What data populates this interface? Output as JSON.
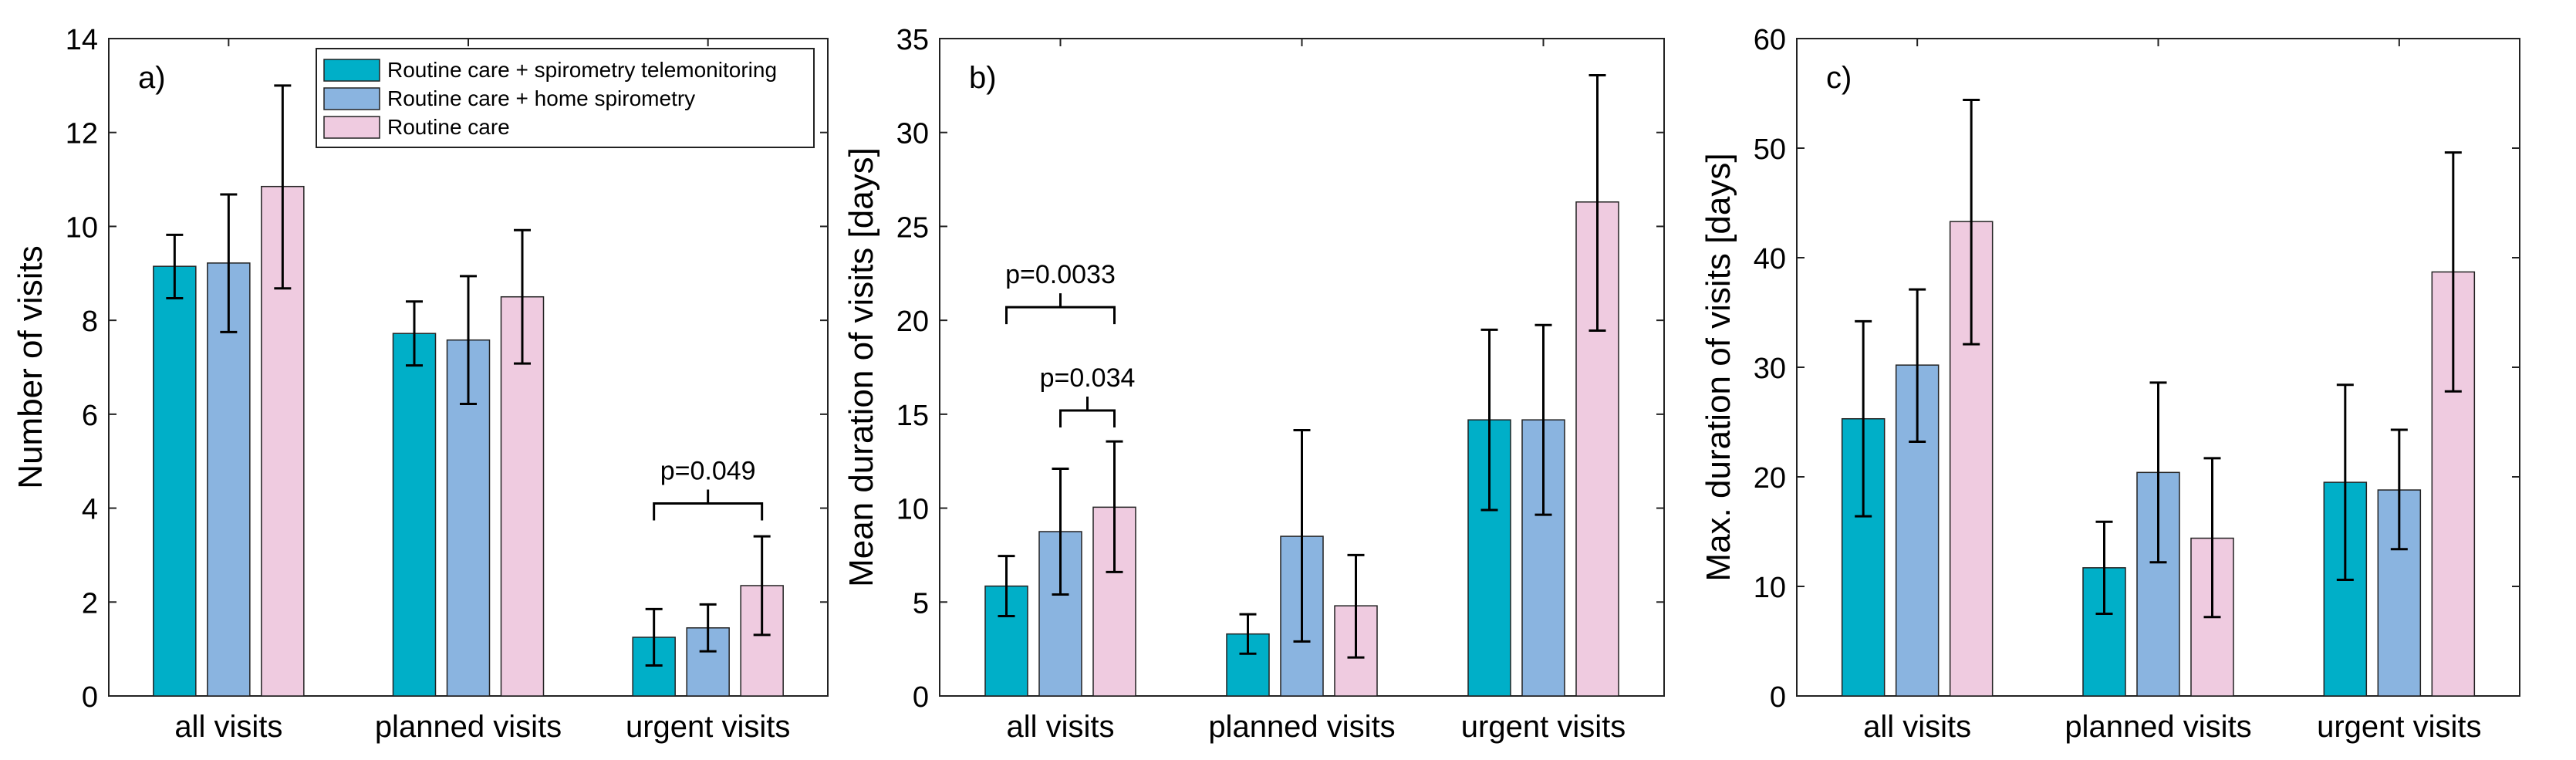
{
  "colors": {
    "telemonitoring": "#00AFC8",
    "home_spirometry": "#8AB4E0",
    "routine_care": "#EFCBE0",
    "bar_edge": "#222222",
    "axis": "#222222"
  },
  "legend": {
    "items": [
      "Routine care + spirometry telemonitoring",
      "Routine care + home spirometry",
      "Routine care"
    ]
  },
  "chart_data": [
    {
      "type": "bar",
      "panel_label": "a)",
      "title": "",
      "xlabel": "",
      "ylabel": "Number of visits",
      "categories": [
        "all visits",
        "planned visits",
        "urgent visits"
      ],
      "ylim": [
        0,
        14
      ],
      "yticks": [
        0,
        2,
        4,
        6,
        8,
        10,
        12,
        14
      ],
      "grid": false,
      "legend_position": "top-right",
      "series": [
        {
          "name": "Routine care + spirometry telemonitoring",
          "values": [
            9.15,
            7.72,
            1.25
          ],
          "err_low": [
            8.47,
            7.04,
            0.65
          ],
          "err_high": [
            9.82,
            8.4,
            1.85
          ]
        },
        {
          "name": "Routine care + home spirometry",
          "values": [
            9.22,
            7.58,
            1.45
          ],
          "err_low": [
            7.75,
            6.22,
            0.95
          ],
          "err_high": [
            10.68,
            8.94,
            1.95
          ]
        },
        {
          "name": "Routine care",
          "values": [
            10.85,
            8.5,
            2.35
          ],
          "err_low": [
            8.68,
            7.08,
            1.3
          ],
          "err_high": [
            13.0,
            9.92,
            3.4
          ]
        }
      ],
      "annotations": [
        {
          "text": "p=0.049",
          "category": 2,
          "from_series": 0,
          "to_series": 2,
          "y": 4.1
        }
      ]
    },
    {
      "type": "bar",
      "panel_label": "b)",
      "title": "",
      "xlabel": "",
      "ylabel": "Mean duration of visits [days]",
      "categories": [
        "all visits",
        "planned visits",
        "urgent visits"
      ],
      "ylim": [
        0,
        35
      ],
      "yticks": [
        0,
        5,
        10,
        15,
        20,
        25,
        30,
        35
      ],
      "grid": false,
      "series": [
        {
          "name": "Routine care + spirometry telemonitoring",
          "values": [
            5.85,
            3.3,
            14.7
          ],
          "err_low": [
            4.25,
            2.25,
            9.9
          ],
          "err_high": [
            7.45,
            4.35,
            19.5
          ]
        },
        {
          "name": "Routine care + home spirometry",
          "values": [
            8.75,
            8.5,
            14.7
          ],
          "err_low": [
            5.4,
            2.9,
            9.65
          ],
          "err_high": [
            12.1,
            14.15,
            19.75
          ]
        },
        {
          "name": "Routine care",
          "values": [
            10.05,
            4.8,
            26.3
          ],
          "err_low": [
            6.6,
            2.05,
            19.45
          ],
          "err_high": [
            13.55,
            7.5,
            33.05
          ]
        }
      ],
      "annotations": [
        {
          "text": "p=0.0033",
          "category": 0,
          "from_series": 0,
          "to_series": 2,
          "y": 20.7
        },
        {
          "text": "p=0.034",
          "category": 0,
          "from_series": 1,
          "to_series": 2,
          "y": 15.2
        }
      ]
    },
    {
      "type": "bar",
      "panel_label": "c)",
      "title": "",
      "xlabel": "",
      "ylabel": "Max. duration of visits [days]",
      "categories": [
        "all visits",
        "planned visits",
        "urgent visits"
      ],
      "ylim": [
        0,
        60
      ],
      "yticks": [
        0,
        10,
        20,
        30,
        40,
        50,
        60
      ],
      "grid": false,
      "series": [
        {
          "name": "Routine care + spirometry telemonitoring",
          "values": [
            25.3,
            11.7,
            19.5
          ],
          "err_low": [
            16.4,
            7.5,
            10.6
          ],
          "err_high": [
            34.2,
            15.9,
            28.4
          ]
        },
        {
          "name": "Routine care + home spirometry",
          "values": [
            30.2,
            20.4,
            18.8
          ],
          "err_low": [
            23.2,
            12.2,
            13.4
          ],
          "err_high": [
            37.1,
            28.6,
            24.3
          ]
        },
        {
          "name": "Routine care",
          "values": [
            43.3,
            14.4,
            38.7
          ],
          "err_low": [
            32.1,
            7.2,
            27.8
          ],
          "err_high": [
            54.4,
            21.7,
            49.6
          ]
        }
      ],
      "annotations": []
    }
  ]
}
